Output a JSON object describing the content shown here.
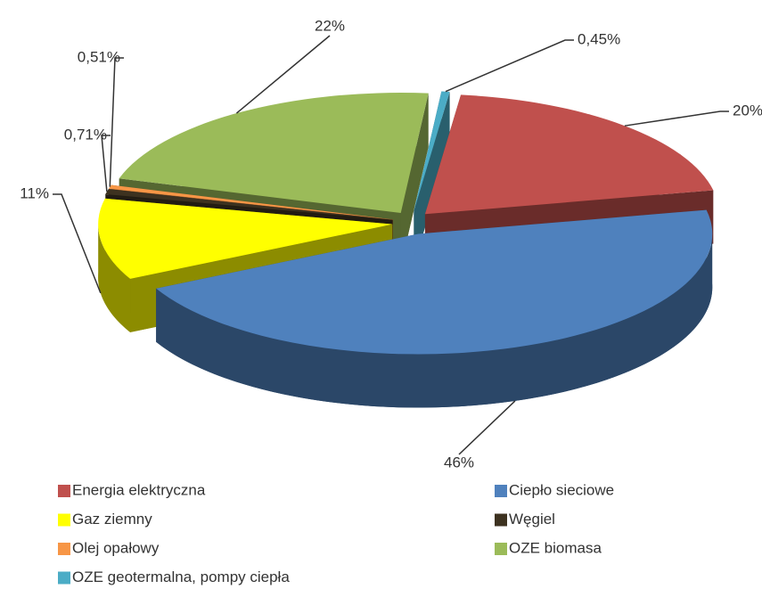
{
  "chart_data": {
    "type": "pie",
    "categories": [
      "Energia elektryczna",
      "Ciepło sieciowe",
      "Gaz ziemny",
      "Węgiel",
      "Olej opałowy",
      "OZE biomasa",
      "OZE geotermalna, pompy ciepła"
    ],
    "values": [
      20,
      46,
      11,
      0.71,
      0.51,
      22,
      0.45
    ],
    "value_labels": [
      "20%",
      "46%",
      "11%",
      "0,71%",
      "0,51%",
      "22%",
      "0,45%"
    ],
    "colors": [
      "#c0504d",
      "#4f81bd",
      "#ffff00",
      "#3d3220",
      "#f79646",
      "#9bbb59",
      "#4bacc6"
    ],
    "legend": "bottom"
  }
}
